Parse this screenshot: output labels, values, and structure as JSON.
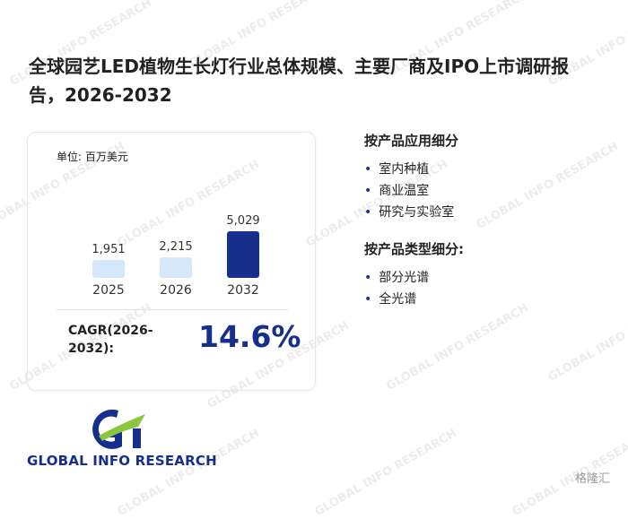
{
  "title": "全球园艺LED植物生长灯行业总体规模、主要厂商及IPO上市调研报告，2026-2032",
  "card": {
    "unit": "单位: 百万美元",
    "cagr_label": "CAGR(2026-2032):",
    "cagr_value": "14.6%"
  },
  "chart_data": {
    "type": "bar",
    "categories": [
      "2025",
      "2026",
      "2032"
    ],
    "values": [
      1951,
      2215,
      5029
    ],
    "value_labels": [
      "1,951",
      "2,215",
      "5,029"
    ],
    "colors": [
      "#d5e7fb",
      "#d5e7fb",
      "#162f8c"
    ]
  },
  "segments": [
    {
      "heading": "按产品应用细分",
      "items": [
        "室内种植",
        "商业温室",
        "研究与实验室"
      ]
    },
    {
      "heading": "按产品类型细分:",
      "items": [
        "部分光谱",
        "全光谱"
      ]
    }
  ],
  "logo": "GLOBAL INFO RESEARCH",
  "watermark": "GLOBAL INFO RESEARCH",
  "source_mark": "格隆汇"
}
